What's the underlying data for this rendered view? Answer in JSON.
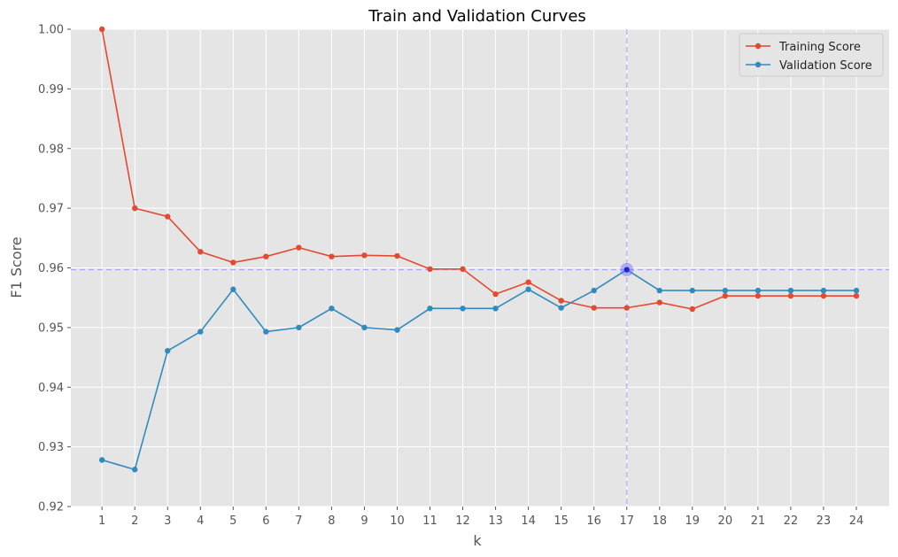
{
  "chart_data": {
    "type": "line",
    "title": "Train and Validation Curves",
    "xlabel": "k",
    "ylabel": "F1 Score",
    "x": [
      1,
      2,
      3,
      4,
      5,
      6,
      7,
      8,
      9,
      10,
      11,
      12,
      13,
      14,
      15,
      16,
      17,
      18,
      19,
      20,
      21,
      22,
      23,
      24
    ],
    "xlim": [
      0.05,
      25.0
    ],
    "ylim": [
      0.92,
      1.0
    ],
    "yticks": [
      "0.92",
      "0.93",
      "0.94",
      "0.95",
      "0.96",
      "0.97",
      "0.98",
      "0.99",
      "1.00"
    ],
    "grid": true,
    "legend_position": "top-right",
    "series": [
      {
        "name": "Training Score",
        "color": "#E24A33",
        "values": [
          1.0,
          0.97,
          0.9686,
          0.9627,
          0.9609,
          0.9619,
          0.9634,
          0.9619,
          0.9621,
          0.962,
          0.9598,
          0.9598,
          0.9556,
          0.9576,
          0.9545,
          0.9533,
          0.9533,
          0.9542,
          0.9531,
          0.9553,
          0.9553,
          0.9553,
          0.9553,
          0.9553
        ]
      },
      {
        "name": "Validation Score",
        "color": "#348ABD",
        "values": [
          0.9278,
          0.9262,
          0.9461,
          0.9493,
          0.9564,
          0.9493,
          0.95,
          0.9532,
          0.95,
          0.9496,
          0.9532,
          0.9532,
          0.9532,
          0.9564,
          0.9533,
          0.9562,
          0.9597,
          0.9562,
          0.9562,
          0.9562,
          0.9562,
          0.9562,
          0.9562,
          0.9562
        ]
      }
    ],
    "best_point": {
      "x": 17,
      "y": 0.9597,
      "color": "#6666ff"
    }
  }
}
